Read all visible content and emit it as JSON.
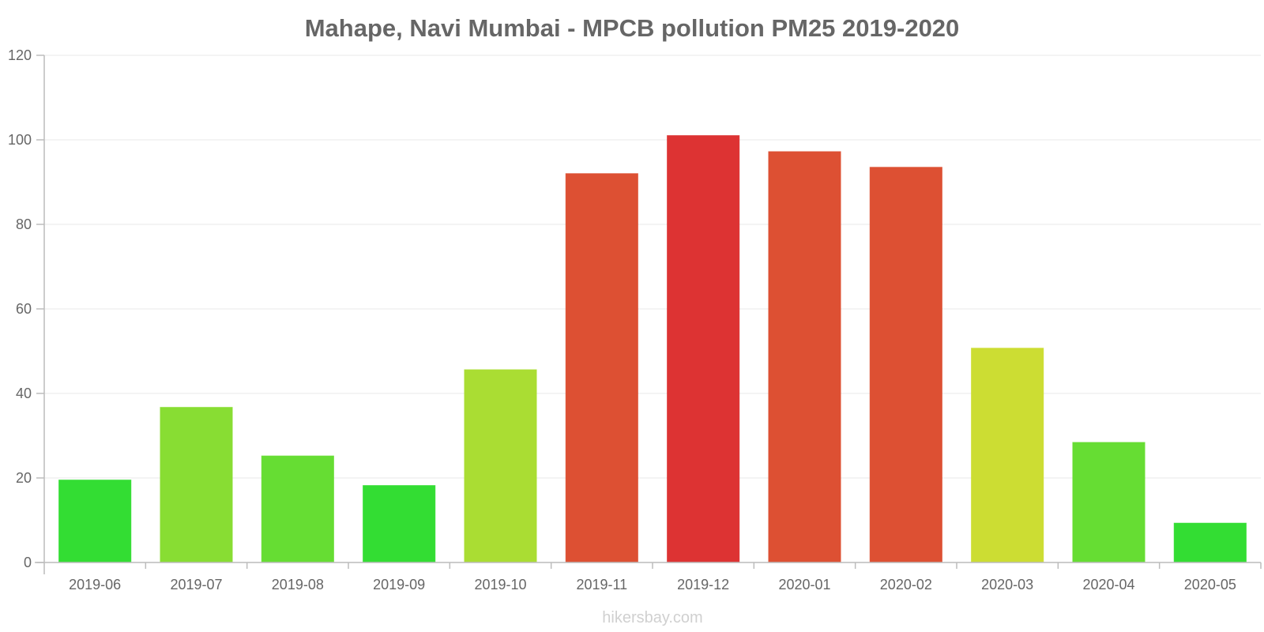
{
  "chart_data": {
    "type": "bar",
    "title": "Mahape, Navi Mumbai - MPCB pollution PM25 2019-2020",
    "categories": [
      "2019-06",
      "2019-07",
      "2019-08",
      "2019-09",
      "2019-10",
      "2019-11",
      "2019-12",
      "2020-01",
      "2020-02",
      "2020-03",
      "2020-04",
      "2020-05"
    ],
    "values": [
      19.5,
      36.7,
      25.2,
      18.2,
      45.6,
      92,
      101,
      97.2,
      93.5,
      50.7,
      28.4,
      9.3
    ],
    "colors": [
      "#33dd33",
      "#88dd33",
      "#66dd33",
      "#33dd33",
      "#aadd33",
      "#dd5033",
      "#dd3333",
      "#dd5033",
      "#dd5033",
      "#ccdd33",
      "#66dd33",
      "#33dd33"
    ],
    "ylim": [
      0,
      120
    ],
    "yticks": [
      0,
      20,
      40,
      60,
      80,
      100,
      120
    ],
    "xlabel": "",
    "ylabel": "",
    "grid": true
  },
  "footer": "hikersbay.com"
}
